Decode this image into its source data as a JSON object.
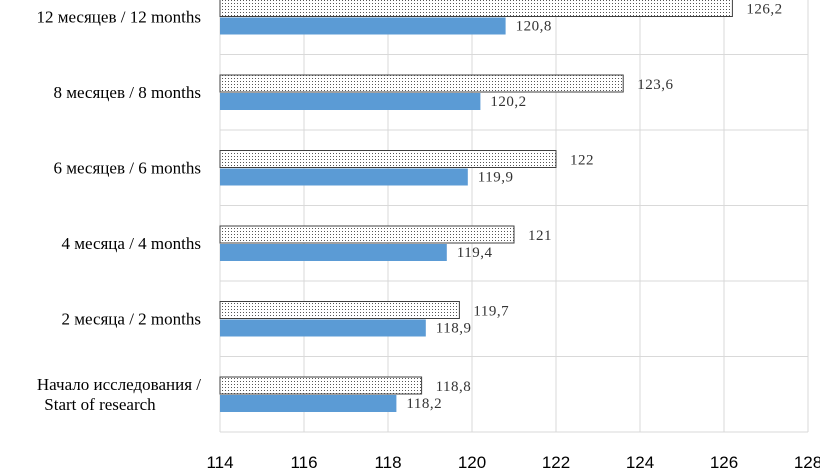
{
  "chart_data": {
    "type": "bar",
    "orientation": "horizontal",
    "categories": [
      [
        "Начало исследования /",
        "Start of research"
      ],
      [
        "2 месяца / 2 months"
      ],
      [
        "4 месяца / 4 months"
      ],
      [
        "6 месяцев / 6 months"
      ],
      [
        "8 месяцев / 8 months"
      ],
      [
        "12 месяцев / 12 months"
      ]
    ],
    "series": [
      {
        "style": "dotted",
        "color": "#ffffff",
        "values": [
          118.8,
          119.7,
          121,
          122,
          123.6,
          126.2
        ],
        "labels": [
          "118,8",
          "119,7",
          "121",
          "122",
          "123,6",
          "126,2"
        ]
      },
      {
        "style": "solid",
        "color": "#5b9bd5",
        "values": [
          118.2,
          118.9,
          119.4,
          119.9,
          120.2,
          120.8
        ],
        "labels": [
          "118,2",
          "118,9",
          "119,4",
          "119,9",
          "120,2",
          "120,8"
        ]
      }
    ],
    "xlim": [
      114,
      128
    ],
    "xticks": [
      114,
      116,
      118,
      120,
      122,
      124,
      126,
      128
    ],
    "grid": true,
    "legend": "none"
  }
}
